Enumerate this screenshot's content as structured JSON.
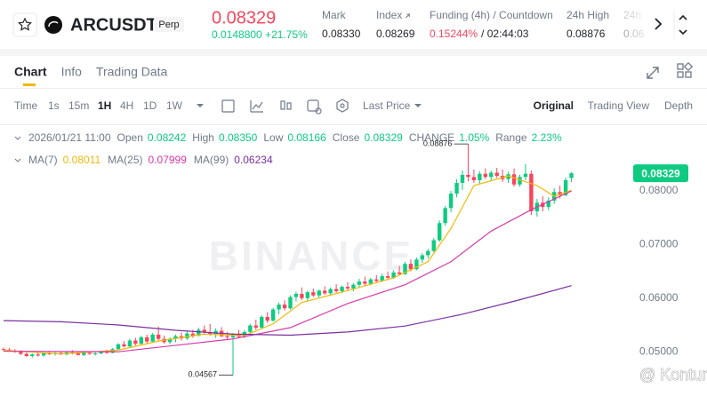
{
  "header": {
    "symbol": "ARCUSDT",
    "tag": "Perp",
    "price": "0.08329",
    "change": "0.0148800 +21.75%",
    "stats": [
      {
        "label": "Mark",
        "value": "0.08330"
      },
      {
        "label": "Index",
        "value": "0.08269"
      },
      {
        "label": "Funding (4h) / Countdown",
        "value": "0.15244%",
        "extra": "/ 02:44:03"
      },
      {
        "label": "24h High",
        "value": "0.08876"
      },
      {
        "label": "24h",
        "value": "0.06"
      }
    ]
  },
  "tabs": [
    "Chart",
    "Info",
    "Trading Data"
  ],
  "toolbar": {
    "intervals": [
      "Time",
      "1s",
      "15m",
      "1H",
      "4H",
      "1D",
      "1W"
    ],
    "price_type": "Last Price",
    "views": [
      "Original",
      "Trading View",
      "Depth"
    ]
  },
  "info": {
    "time": "2026/01/21 11:00",
    "fields": [
      {
        "label": "Open",
        "value": "0.08242"
      },
      {
        "label": "High",
        "value": "0.08350"
      },
      {
        "label": "Low",
        "value": "0.08166"
      },
      {
        "label": "Close",
        "value": "0.08329"
      },
      {
        "label": "CHANGE",
        "value": "1.05%"
      },
      {
        "label": "Range",
        "value": "2.23%"
      }
    ]
  },
  "watermark": "BINANCE",
  "credit": "@ Kontur",
  "chart": {
    "type": "candlestick",
    "up_color": "#0ecb81",
    "down_color": "#f6465d",
    "ylim": [
      0.0444,
      0.0911
    ],
    "yticks": [
      {
        "value": 0.05,
        "label": "0.05000"
      },
      {
        "value": 0.06,
        "label": "0.06000"
      },
      {
        "value": 0.07,
        "label": "0.07000"
      },
      {
        "value": 0.08,
        "label": "0.08000"
      }
    ],
    "candles": [
      [
        0.0505,
        0.0508,
        0.0502,
        0.0504
      ],
      [
        0.0504,
        0.0507,
        0.05,
        0.0502
      ],
      [
        0.0502,
        0.0505,
        0.0498,
        0.05
      ],
      [
        0.05,
        0.0503,
        0.0494,
        0.0496
      ],
      [
        0.0496,
        0.0499,
        0.049,
        0.0492
      ],
      [
        0.0492,
        0.0497,
        0.0489,
        0.0495
      ],
      [
        0.0495,
        0.0498,
        0.0491,
        0.0493
      ],
      [
        0.0493,
        0.0499,
        0.0491,
        0.0497
      ],
      [
        0.0497,
        0.0502,
        0.0494,
        0.0496
      ],
      [
        0.0496,
        0.05,
        0.0493,
        0.0498
      ],
      [
        0.0498,
        0.0501,
        0.0494,
        0.0495
      ],
      [
        0.0495,
        0.05,
        0.0493,
        0.0499
      ],
      [
        0.0499,
        0.0503,
        0.0495,
        0.0497
      ],
      [
        0.0497,
        0.05,
        0.0493,
        0.0494
      ],
      [
        0.0494,
        0.0499,
        0.0492,
        0.0498
      ],
      [
        0.0498,
        0.0501,
        0.0494,
        0.0496
      ],
      [
        0.0496,
        0.05,
        0.0493,
        0.0497
      ],
      [
        0.0497,
        0.0502,
        0.0495,
        0.05
      ],
      [
        0.05,
        0.0504,
        0.0496,
        0.0498
      ],
      [
        0.0498,
        0.0507,
        0.0497,
        0.0505
      ],
      [
        0.0505,
        0.0516,
        0.0503,
        0.0514
      ],
      [
        0.0514,
        0.052,
        0.0508,
        0.051
      ],
      [
        0.051,
        0.0524,
        0.0509,
        0.0521
      ],
      [
        0.0521,
        0.0526,
        0.0512,
        0.0515
      ],
      [
        0.0515,
        0.053,
        0.0513,
        0.0527
      ],
      [
        0.0527,
        0.0532,
        0.0516,
        0.0519
      ],
      [
        0.0519,
        0.0535,
        0.0517,
        0.0532
      ],
      [
        0.0532,
        0.0547,
        0.052,
        0.0524
      ],
      [
        0.0524,
        0.053,
        0.0515,
        0.0518
      ],
      [
        0.0518,
        0.0527,
        0.0514,
        0.0524
      ],
      [
        0.0524,
        0.0532,
        0.0518,
        0.0529
      ],
      [
        0.0529,
        0.0536,
        0.0521,
        0.0525
      ],
      [
        0.0525,
        0.0538,
        0.0522,
        0.0534
      ],
      [
        0.0534,
        0.0541,
        0.0526,
        0.053
      ],
      [
        0.053,
        0.0545,
        0.0528,
        0.0541
      ],
      [
        0.0541,
        0.0549,
        0.0532,
        0.0536
      ],
      [
        0.0536,
        0.0552,
        0.053,
        0.0533
      ],
      [
        0.0533,
        0.0544,
        0.0526,
        0.0539
      ],
      [
        0.0539,
        0.0546,
        0.0527,
        0.0529
      ],
      [
        0.0529,
        0.0537,
        0.0522,
        0.0527
      ],
      [
        0.0527,
        0.0535,
        0.04567,
        0.0532
      ],
      [
        0.0532,
        0.0541,
        0.0526,
        0.0528
      ],
      [
        0.0528,
        0.054,
        0.0525,
        0.0537
      ],
      [
        0.0537,
        0.0552,
        0.0533,
        0.0549
      ],
      [
        0.0549,
        0.056,
        0.0541,
        0.0545
      ],
      [
        0.0545,
        0.0568,
        0.0543,
        0.0565
      ],
      [
        0.0565,
        0.0574,
        0.0554,
        0.0558
      ],
      [
        0.0558,
        0.0582,
        0.0556,
        0.0579
      ],
      [
        0.0579,
        0.0592,
        0.057,
        0.0588
      ],
      [
        0.0588,
        0.0596,
        0.0577,
        0.0581
      ],
      [
        0.0581,
        0.0605,
        0.0579,
        0.0602
      ],
      [
        0.0602,
        0.0612,
        0.0594,
        0.0608
      ],
      [
        0.0608,
        0.062,
        0.0596,
        0.06
      ],
      [
        0.06,
        0.0614,
        0.0595,
        0.0611
      ],
      [
        0.0611,
        0.0618,
        0.0602,
        0.0605
      ],
      [
        0.0605,
        0.0616,
        0.06,
        0.0614
      ],
      [
        0.0614,
        0.0622,
        0.0606,
        0.0609
      ],
      [
        0.0609,
        0.062,
        0.0604,
        0.0617
      ],
      [
        0.0617,
        0.0626,
        0.061,
        0.0613
      ],
      [
        0.0613,
        0.0624,
        0.0609,
        0.0621
      ],
      [
        0.0621,
        0.063,
        0.0614,
        0.0618
      ],
      [
        0.0618,
        0.0628,
        0.0613,
        0.0625
      ],
      [
        0.0625,
        0.0636,
        0.062,
        0.0631
      ],
      [
        0.0631,
        0.064,
        0.0622,
        0.0627
      ],
      [
        0.0627,
        0.0638,
        0.0624,
        0.0635
      ],
      [
        0.0635,
        0.0643,
        0.0628,
        0.0632
      ],
      [
        0.0632,
        0.0646,
        0.063,
        0.0641
      ],
      [
        0.0641,
        0.065,
        0.0634,
        0.0638
      ],
      [
        0.0638,
        0.0652,
        0.0636,
        0.0648
      ],
      [
        0.0648,
        0.066,
        0.0642,
        0.0645
      ],
      [
        0.0645,
        0.0668,
        0.0643,
        0.0664
      ],
      [
        0.0664,
        0.0672,
        0.065,
        0.0654
      ],
      [
        0.0654,
        0.0676,
        0.0652,
        0.0672
      ],
      [
        0.0672,
        0.0684,
        0.0666,
        0.068
      ],
      [
        0.068,
        0.0692,
        0.0674,
        0.0688
      ],
      [
        0.0688,
        0.0712,
        0.0686,
        0.0708
      ],
      [
        0.0708,
        0.0745,
        0.0705,
        0.074
      ],
      [
        0.074,
        0.0772,
        0.0735,
        0.0768
      ],
      [
        0.0768,
        0.08,
        0.076,
        0.0795
      ],
      [
        0.0795,
        0.0822,
        0.0788,
        0.0815
      ],
      [
        0.0815,
        0.0838,
        0.0802,
        0.083
      ],
      [
        0.083,
        0.08876,
        0.0818,
        0.0826
      ],
      [
        0.0826,
        0.084,
        0.0815,
        0.082
      ],
      [
        0.082,
        0.0837,
        0.0812,
        0.0832
      ],
      [
        0.0832,
        0.0842,
        0.0822,
        0.0826
      ],
      [
        0.0826,
        0.0838,
        0.0818,
        0.0834
      ],
      [
        0.0834,
        0.0843,
        0.0824,
        0.0828
      ],
      [
        0.0828,
        0.084,
        0.0817,
        0.0822
      ],
      [
        0.0822,
        0.0836,
        0.0815,
        0.0831
      ],
      [
        0.0831,
        0.0842,
        0.0808,
        0.0812
      ],
      [
        0.0812,
        0.083,
        0.0808,
        0.0826
      ],
      [
        0.0826,
        0.085,
        0.082,
        0.0832
      ],
      [
        0.0832,
        0.0838,
        0.0755,
        0.0762
      ],
      [
        0.0762,
        0.0785,
        0.0752,
        0.0778
      ],
      [
        0.0778,
        0.079,
        0.0762,
        0.077
      ],
      [
        0.077,
        0.0788,
        0.0764,
        0.0782
      ],
      [
        0.0782,
        0.0805,
        0.0776,
        0.0798
      ],
      [
        0.0798,
        0.081,
        0.0786,
        0.0792
      ],
      [
        0.0792,
        0.0825,
        0.079,
        0.082
      ],
      [
        0.08242,
        0.0835,
        0.08166,
        0.08329
      ]
    ],
    "ma_lines": [
      {
        "name": "MA(7)",
        "color": "#f0b90b",
        "x": [
          0,
          10,
          20,
          27,
          35,
          42,
          47,
          52,
          60,
          68,
          74,
          78,
          82,
          88,
          93,
          96,
          99
        ],
        "values": [
          0.0503,
          0.0496,
          0.0503,
          0.052,
          0.0533,
          0.053,
          0.0552,
          0.0592,
          0.0614,
          0.0638,
          0.0668,
          0.073,
          0.081,
          0.0828,
          0.081,
          0.079,
          0.08011
        ]
      },
      {
        "name": "MA(25)",
        "color": "#d63aa8",
        "x": [
          0,
          20,
          30,
          40,
          50,
          60,
          70,
          78,
          85,
          92,
          99
        ],
        "values": [
          0.0501,
          0.05,
          0.0512,
          0.0524,
          0.0545,
          0.059,
          0.0625,
          0.0668,
          0.0725,
          0.0765,
          0.07999
        ]
      },
      {
        "name": "MA(99)",
        "color": "#7b2fa0",
        "x": [
          0,
          10,
          20,
          30,
          40,
          50,
          60,
          70,
          80,
          90,
          99
        ],
        "values": [
          0.0558,
          0.0556,
          0.055,
          0.054,
          0.0533,
          0.0531,
          0.0537,
          0.0548,
          0.057,
          0.0597,
          0.06234
        ]
      }
    ]
  }
}
